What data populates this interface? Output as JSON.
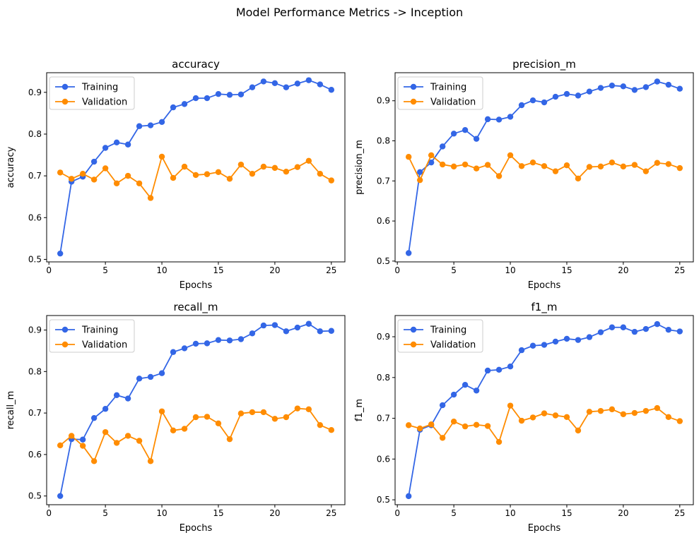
{
  "suptitle": "Model Performance Metrics -> Inception",
  "colors": {
    "training": "#3366e6",
    "validation": "#ff8c00",
    "axis": "#000000",
    "legend_border": "#cccccc"
  },
  "chart_data": [
    {
      "type": "line",
      "title": "accuracy",
      "xlabel": "Epochs",
      "ylabel": "accuracy",
      "xlim": [
        -0.2,
        26.2
      ],
      "ylim": [
        0.494,
        0.947
      ],
      "xticks": [
        0,
        5,
        10,
        15,
        20,
        25
      ],
      "yticks": [
        0.5,
        0.6,
        0.7,
        0.8,
        0.9
      ],
      "legend_position": "upper-left",
      "x": [
        1,
        2,
        3,
        4,
        5,
        6,
        7,
        8,
        9,
        10,
        11,
        12,
        13,
        14,
        15,
        16,
        17,
        18,
        19,
        20,
        21,
        22,
        23,
        24,
        25
      ],
      "series": [
        {
          "name": "Training",
          "values": [
            0.514,
            0.686,
            0.698,
            0.734,
            0.767,
            0.78,
            0.775,
            0.819,
            0.821,
            0.829,
            0.864,
            0.872,
            0.886,
            0.886,
            0.896,
            0.894,
            0.895,
            0.912,
            0.926,
            0.922,
            0.912,
            0.921,
            0.929,
            0.919,
            0.906
          ]
        },
        {
          "name": "Validation",
          "values": [
            0.708,
            0.693,
            0.705,
            0.691,
            0.718,
            0.682,
            0.7,
            0.682,
            0.647,
            0.746,
            0.695,
            0.722,
            0.702,
            0.704,
            0.709,
            0.693,
            0.727,
            0.705,
            0.722,
            0.719,
            0.71,
            0.721,
            0.736,
            0.705,
            0.689
          ]
        }
      ]
    },
    {
      "type": "line",
      "title": "precision_m",
      "xlabel": "Epochs",
      "ylabel": "precision_m",
      "xlim": [
        -0.2,
        26.2
      ],
      "ylim": [
        0.498,
        0.97
      ],
      "xticks": [
        0,
        5,
        10,
        15,
        20,
        25
      ],
      "yticks": [
        0.5,
        0.6,
        0.7,
        0.8,
        0.9
      ],
      "legend_position": "upper-left",
      "x": [
        1,
        2,
        3,
        4,
        5,
        6,
        7,
        8,
        9,
        10,
        11,
        12,
        13,
        14,
        15,
        16,
        17,
        18,
        19,
        20,
        21,
        22,
        23,
        24,
        25
      ],
      "series": [
        {
          "name": "Training",
          "values": [
            0.52,
            0.722,
            0.746,
            0.786,
            0.818,
            0.827,
            0.805,
            0.854,
            0.853,
            0.86,
            0.889,
            0.901,
            0.896,
            0.91,
            0.917,
            0.913,
            0.923,
            0.932,
            0.938,
            0.936,
            0.927,
            0.934,
            0.948,
            0.94,
            0.93
          ]
        },
        {
          "name": "Validation",
          "values": [
            0.76,
            0.702,
            0.764,
            0.741,
            0.736,
            0.741,
            0.731,
            0.74,
            0.712,
            0.764,
            0.737,
            0.746,
            0.737,
            0.724,
            0.739,
            0.706,
            0.735,
            0.736,
            0.746,
            0.736,
            0.74,
            0.724,
            0.745,
            0.742,
            0.732
          ]
        }
      ]
    },
    {
      "type": "line",
      "title": "recall_m",
      "xlabel": "Epochs",
      "ylabel": "recall_m",
      "xlim": [
        -0.2,
        26.2
      ],
      "ylim": [
        0.479,
        0.935
      ],
      "xticks": [
        0,
        5,
        10,
        15,
        20,
        25
      ],
      "yticks": [
        0.5,
        0.6,
        0.7,
        0.8,
        0.9
      ],
      "legend_position": "upper-left",
      "x": [
        1,
        2,
        3,
        4,
        5,
        6,
        7,
        8,
        9,
        10,
        11,
        12,
        13,
        14,
        15,
        16,
        17,
        18,
        19,
        20,
        21,
        22,
        23,
        24,
        25
      ],
      "series": [
        {
          "name": "Training",
          "values": [
            0.5,
            0.637,
            0.636,
            0.688,
            0.71,
            0.743,
            0.735,
            0.783,
            0.787,
            0.796,
            0.847,
            0.856,
            0.867,
            0.868,
            0.876,
            0.875,
            0.878,
            0.892,
            0.911,
            0.912,
            0.897,
            0.906,
            0.915,
            0.897,
            0.898
          ]
        },
        {
          "name": "Validation",
          "values": [
            0.622,
            0.645,
            0.621,
            0.584,
            0.654,
            0.628,
            0.645,
            0.633,
            0.584,
            0.704,
            0.658,
            0.662,
            0.69,
            0.691,
            0.675,
            0.637,
            0.699,
            0.702,
            0.702,
            0.686,
            0.69,
            0.711,
            0.709,
            0.671,
            0.659
          ]
        }
      ]
    },
    {
      "type": "line",
      "title": "f1_m",
      "xlabel": "Epochs",
      "ylabel": "f1_m",
      "xlim": [
        -0.2,
        26.2
      ],
      "ylim": [
        0.488,
        0.952
      ],
      "xticks": [
        0,
        5,
        10,
        15,
        20,
        25
      ],
      "yticks": [
        0.5,
        0.6,
        0.7,
        0.8,
        0.9
      ],
      "legend_position": "upper-left",
      "x": [
        1,
        2,
        3,
        4,
        5,
        6,
        7,
        8,
        9,
        10,
        11,
        12,
        13,
        14,
        15,
        16,
        17,
        18,
        19,
        20,
        21,
        22,
        23,
        24,
        25
      ],
      "series": [
        {
          "name": "Training",
          "values": [
            0.509,
            0.672,
            0.683,
            0.732,
            0.758,
            0.782,
            0.768,
            0.817,
            0.819,
            0.827,
            0.867,
            0.878,
            0.88,
            0.888,
            0.895,
            0.892,
            0.899,
            0.911,
            0.923,
            0.923,
            0.912,
            0.919,
            0.931,
            0.917,
            0.913
          ]
        },
        {
          "name": "Validation",
          "values": [
            0.683,
            0.675,
            0.685,
            0.652,
            0.692,
            0.68,
            0.684,
            0.681,
            0.642,
            0.731,
            0.694,
            0.702,
            0.712,
            0.707,
            0.703,
            0.67,
            0.716,
            0.718,
            0.722,
            0.71,
            0.713,
            0.718,
            0.725,
            0.703,
            0.693
          ]
        }
      ]
    }
  ]
}
